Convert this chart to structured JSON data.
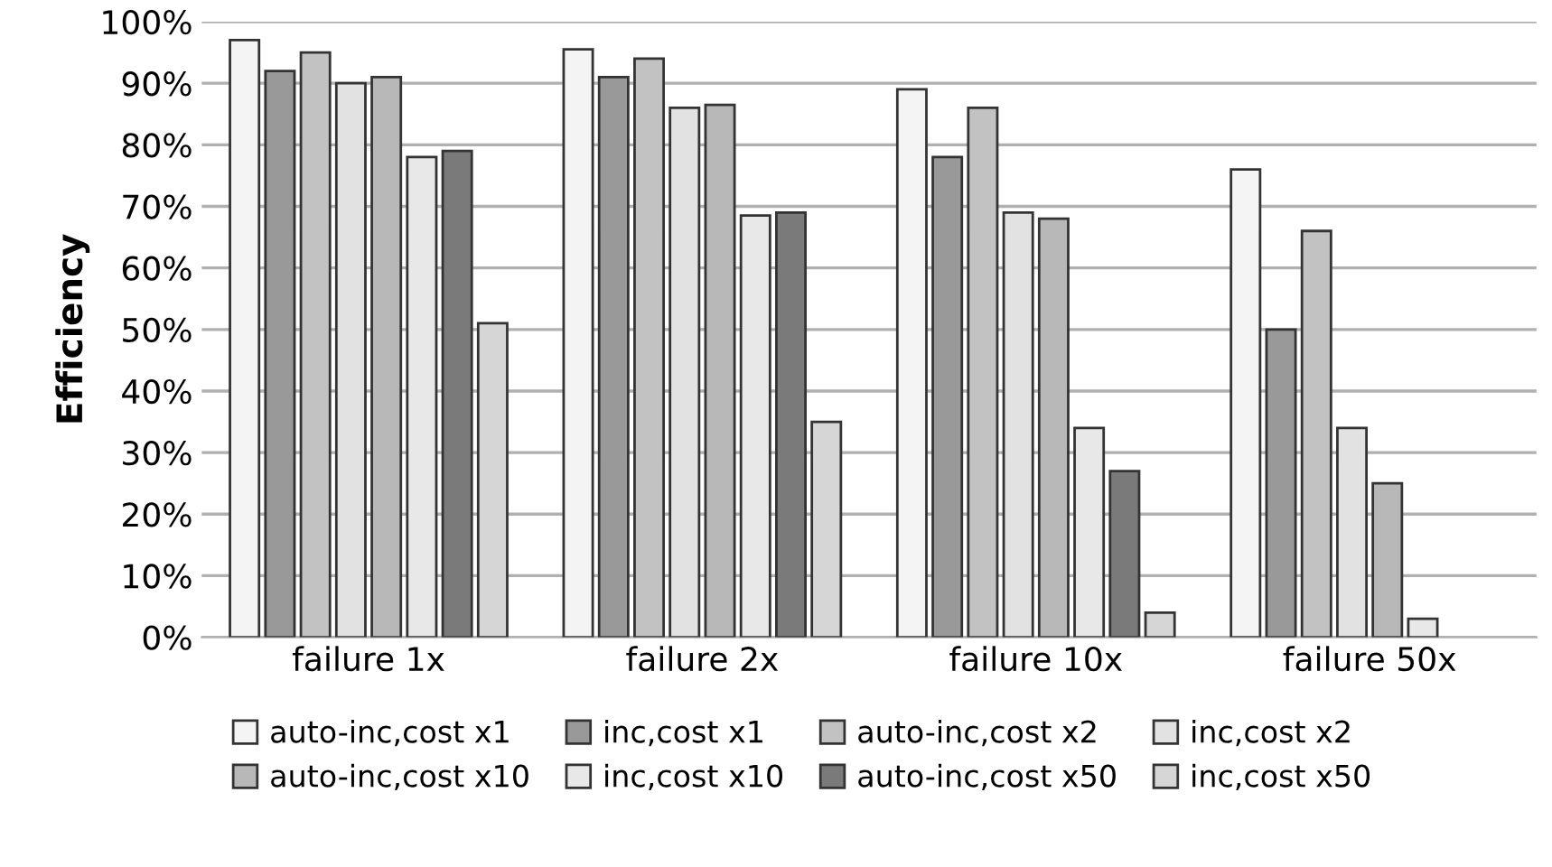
{
  "chart_data": {
    "type": "bar",
    "ylabel": "Efficiency",
    "categories": [
      "failure 1x",
      "failure 2x",
      "failure 10x",
      "failure 50x"
    ],
    "series": [
      {
        "name": "auto-inc,cost x1",
        "color": "#f4f4f4",
        "values": [
          97,
          95.5,
          89,
          76
        ]
      },
      {
        "name": "inc,cost x1",
        "color": "#999999",
        "values": [
          92,
          91,
          78,
          50
        ]
      },
      {
        "name": "auto-inc,cost x2",
        "color": "#c2c2c2",
        "values": [
          95,
          94,
          86,
          66
        ]
      },
      {
        "name": "inc,cost x2",
        "color": "#e2e2e2",
        "values": [
          90,
          86,
          69,
          34
        ]
      },
      {
        "name": "auto-inc,cost x10",
        "color": "#b8b8b8",
        "values": [
          91,
          86.5,
          68,
          25
        ]
      },
      {
        "name": "inc,cost x10",
        "color": "#e8e8e8",
        "values": [
          78,
          68.5,
          34,
          3
        ]
      },
      {
        "name": "auto-inc,cost x50",
        "color": "#7a7a7a",
        "values": [
          79,
          69,
          27,
          null
        ]
      },
      {
        "name": "inc,cost x50",
        "color": "#d6d6d6",
        "values": [
          51,
          35,
          4,
          null
        ]
      }
    ],
    "ylim": [
      0,
      100
    ],
    "yticks": [
      {
        "value": 0,
        "label": "0%"
      },
      {
        "value": 10,
        "label": "10%"
      },
      {
        "value": 20,
        "label": "20%"
      },
      {
        "value": 30,
        "label": "30%"
      },
      {
        "value": 40,
        "label": "40%"
      },
      {
        "value": 50,
        "label": "50%"
      },
      {
        "value": 60,
        "label": "60%"
      },
      {
        "value": 70,
        "label": "70%"
      },
      {
        "value": 80,
        "label": "80%"
      },
      {
        "value": 90,
        "label": "90%"
      },
      {
        "value": 100,
        "label": "100%"
      }
    ],
    "grid": "y",
    "legend": "bottom"
  }
}
